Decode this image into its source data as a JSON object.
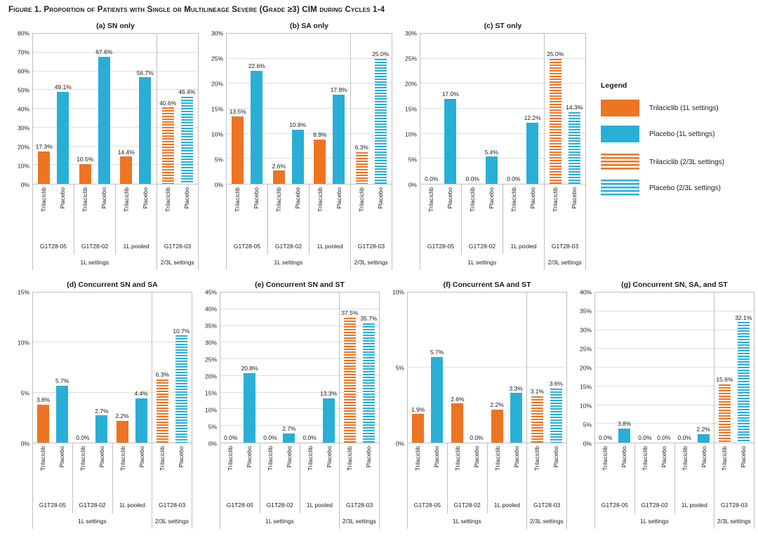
{
  "figure_title": "Figure 1. Proportion of Patients with Single or Multilineage Severe (Grade ≥3) CIM during Cycles 1-4",
  "colors": {
    "trilaciclib": "#ED7423",
    "placebo": "#29AFD6",
    "grid": "#DEDEDE",
    "border": "#BFBFBF"
  },
  "legend": {
    "title": "Legend",
    "items": [
      {
        "label": "Trilaciclib (1L settings)",
        "series": "trilaciclib",
        "pattern": "solid"
      },
      {
        "label": "Placebo (1L settings)",
        "series": "placebo",
        "pattern": "solid"
      },
      {
        "label": "Trilaciclib (2/3L settings)",
        "series": "trilaciclib",
        "pattern": "striped"
      },
      {
        "label": "Placebo (2/3L settings)",
        "series": "placebo",
        "pattern": "striped"
      }
    ]
  },
  "x_axis": {
    "bar_labels": [
      "Trilaciclib",
      "Placebo"
    ],
    "groups": [
      "G1T28-05",
      "G1T28-02",
      "1L pooled",
      "G1T28-03"
    ],
    "settings": [
      {
        "label": "1L settings",
        "groups": 3
      },
      {
        "label": "2/3L settings",
        "groups": 1
      }
    ],
    "striped_group_index": 3
  },
  "chart_data": [
    {
      "type": "bar",
      "title": "(a) SN only",
      "row": "top",
      "ylim": [
        0,
        80
      ],
      "ytick_step": 10,
      "ytick_format": "percent",
      "grid": true,
      "categories": [
        "G1T28-05",
        "G1T28-02",
        "1L pooled",
        "G1T28-03"
      ],
      "series": [
        {
          "name": "Trilaciclib",
          "key": "trilaciclib",
          "values": [
            17.3,
            10.5,
            14.4,
            40.6
          ]
        },
        {
          "name": "Placebo",
          "key": "placebo",
          "values": [
            49.1,
            67.6,
            56.7,
            46.4
          ]
        }
      ]
    },
    {
      "type": "bar",
      "title": "(b) SA only",
      "row": "top",
      "ylim": [
        0,
        30
      ],
      "ytick_step": 5,
      "ytick_format": "percent",
      "grid": true,
      "categories": [
        "G1T28-05",
        "G1T28-02",
        "1L pooled",
        "G1T28-03"
      ],
      "series": [
        {
          "name": "Trilaciclib",
          "key": "trilaciclib",
          "values": [
            13.5,
            2.6,
            8.9,
            6.3
          ]
        },
        {
          "name": "Placebo",
          "key": "placebo",
          "values": [
            22.6,
            10.8,
            17.8,
            25.0
          ]
        }
      ]
    },
    {
      "type": "bar",
      "title": "(c) ST only",
      "row": "top",
      "ylim": [
        0,
        30
      ],
      "ytick_step": 5,
      "ytick_format": "percent",
      "grid": true,
      "categories": [
        "G1T28-05",
        "G1T28-02",
        "1L pooled",
        "G1T28-03"
      ],
      "series": [
        {
          "name": "Trilaciclib",
          "key": "trilaciclib",
          "values": [
            0.0,
            0.0,
            0.0,
            25.0
          ]
        },
        {
          "name": "Placebo",
          "key": "placebo",
          "values": [
            17.0,
            5.4,
            12.2,
            14.3
          ]
        }
      ]
    },
    {
      "type": "bar",
      "title": "(d) Concurrent SN and SA",
      "row": "bottom",
      "ylim": [
        0,
        15
      ],
      "ytick_step": 5,
      "ytick_format": "percent",
      "grid": true,
      "categories": [
        "G1T28-05",
        "G1T28-02",
        "1L pooled",
        "G1T28-03"
      ],
      "series": [
        {
          "name": "Trilaciclib",
          "key": "trilaciclib",
          "values": [
            3.8,
            0.0,
            2.2,
            6.3
          ]
        },
        {
          "name": "Placebo",
          "key": "placebo",
          "values": [
            5.7,
            2.7,
            4.4,
            10.7
          ]
        }
      ]
    },
    {
      "type": "bar",
      "title": "(e) Concurrent SN and ST",
      "row": "bottom",
      "ylim": [
        0,
        45
      ],
      "ytick_step": 5,
      "ytick_format": "percent",
      "grid": true,
      "categories": [
        "G1T28-05",
        "G1T28-02",
        "1L pooled",
        "G1T28-03"
      ],
      "series": [
        {
          "name": "Trilaciclib",
          "key": "trilaciclib",
          "values": [
            0.0,
            0.0,
            0.0,
            37.5
          ]
        },
        {
          "name": "Placebo",
          "key": "placebo",
          "values": [
            20.8,
            2.7,
            13.3,
            35.7
          ]
        }
      ]
    },
    {
      "type": "bar",
      "title": "(f) Concurrent SA and ST",
      "row": "bottom",
      "ylim": [
        0,
        10
      ],
      "ytick_step": 5,
      "ytick_format": "percent",
      "grid": true,
      "categories": [
        "G1T28-05",
        "G1T28-02",
        "1L pooled",
        "G1T28-03"
      ],
      "series": [
        {
          "name": "Trilaciclib",
          "key": "trilaciclib",
          "values": [
            1.9,
            2.6,
            2.2,
            3.1
          ]
        },
        {
          "name": "Placebo",
          "key": "placebo",
          "values": [
            5.7,
            0.0,
            3.3,
            3.6
          ]
        }
      ]
    },
    {
      "type": "bar",
      "title": "(g) Concurrent SN, SA, and ST",
      "row": "bottom",
      "ylim": [
        0,
        40
      ],
      "ytick_step": 5,
      "ytick_format": "percent",
      "grid": true,
      "categories": [
        "G1T28-05",
        "G1T28-02",
        "1L pooled",
        "G1T28-03"
      ],
      "series": [
        {
          "name": "Trilaciclib",
          "key": "trilaciclib",
          "values": [
            0.0,
            0.0,
            0.0,
            15.6
          ]
        },
        {
          "name": "Placebo",
          "key": "placebo",
          "values": [
            3.8,
            0.0,
            2.2,
            32.1
          ]
        }
      ]
    }
  ]
}
